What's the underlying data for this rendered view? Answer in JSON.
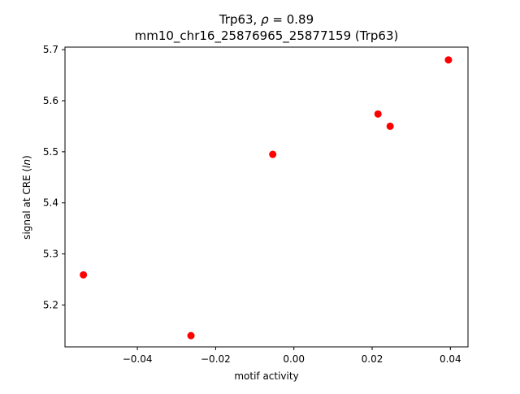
{
  "chart_data": {
    "type": "scatter",
    "title_line1_prefix": "Trp63, ",
    "title_line1_rho_symbol": "ρ",
    "title_line1_rho_value": " = 0.89",
    "title_line2": "mm10_chr16_25876965_25877159 (Trp63)",
    "xlabel": "motif activity",
    "ylabel_prefix": "signal at CRE (",
    "ylabel_italic": "ln",
    "ylabel_suffix": ")",
    "xlim": [
      -0.0585,
      0.0445
    ],
    "ylim": [
      5.118,
      5.705
    ],
    "xticks": [
      {
        "value": -0.04,
        "label": "−0.04"
      },
      {
        "value": -0.02,
        "label": "−0.02"
      },
      {
        "value": 0.0,
        "label": "0.00"
      },
      {
        "value": 0.02,
        "label": "0.02"
      },
      {
        "value": 0.04,
        "label": "0.04"
      }
    ],
    "yticks": [
      {
        "value": 5.2,
        "label": "5.2"
      },
      {
        "value": 5.3,
        "label": "5.3"
      },
      {
        "value": 5.4,
        "label": "5.4"
      },
      {
        "value": 5.5,
        "label": "5.5"
      },
      {
        "value": 5.6,
        "label": "5.6"
      },
      {
        "value": 5.7,
        "label": "5.7"
      }
    ],
    "grid": false,
    "marker_color": "#ff0000",
    "points": [
      {
        "x": -0.0538,
        "y": 5.259
      },
      {
        "x": -0.0263,
        "y": 5.14
      },
      {
        "x": -0.0054,
        "y": 5.495
      },
      {
        "x": 0.0215,
        "y": 5.574
      },
      {
        "x": 0.0246,
        "y": 5.55
      },
      {
        "x": 0.0395,
        "y": 5.68
      }
    ]
  }
}
